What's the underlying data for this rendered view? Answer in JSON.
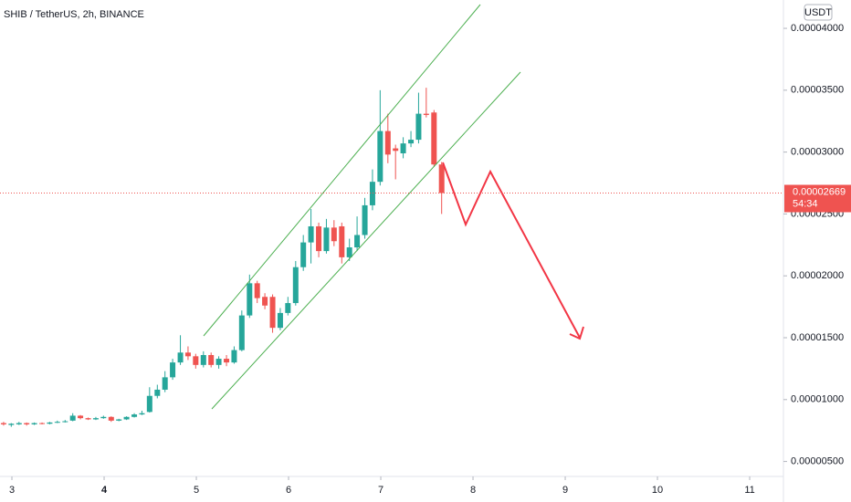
{
  "chart_data": {
    "type": "candlestick",
    "title": "SHIB / TetherUS, 2h, BINANCE",
    "currency": "USDT",
    "up_color": "#26a69a",
    "down_color": "#ef5350",
    "x": [
      2.91,
      2.993,
      3.077,
      3.16,
      3.243,
      3.327,
      3.41,
      3.493,
      3.577,
      3.66,
      3.743,
      3.827,
      3.91,
      3.993,
      4.077,
      4.16,
      4.243,
      4.327,
      4.41,
      4.493,
      4.577,
      4.66,
      4.743,
      4.827,
      4.91,
      4.993,
      5.077,
      5.16,
      5.243,
      5.327,
      5.41,
      5.493,
      5.577,
      5.66,
      5.743,
      5.827,
      5.91,
      5.993,
      6.077,
      6.16,
      6.243,
      6.327,
      6.41,
      6.493,
      6.577,
      6.66,
      6.743,
      6.827,
      6.91,
      6.993,
      7.077,
      7.16,
      7.243,
      7.327,
      7.41,
      7.493,
      7.577,
      7.66
    ],
    "open": [
      8.1e-06,
      7.95e-06,
      8e-06,
      8.1e-06,
      8e-06,
      8.1e-06,
      8.05e-06,
      8.15e-06,
      8.2e-06,
      8.3e-06,
      8.7e-06,
      8.5e-06,
      8.4e-06,
      8.5e-06,
      8.6e-06,
      8.3e-06,
      8.4e-06,
      8.6e-06,
      8.8e-06,
      9e-06,
      1.03e-05,
      1.08e-05,
      1.18e-05,
      1.3e-05,
      1.38e-05,
      1.35e-05,
      1.28e-05,
      1.36e-05,
      1.28e-05,
      1.33e-05,
      1.3e-05,
      1.4e-05,
      1.68e-05,
      1.94e-05,
      1.83e-05,
      1.83e-05,
      1.58e-05,
      1.7e-05,
      1.78e-05,
      2.07e-05,
      2.27e-05,
      2.4e-05,
      2.2e-05,
      2.39e-05,
      2.4e-05,
      2.15e-05,
      2.23e-05,
      2.33e-05,
      2.57e-05,
      2.76e-05,
      3.17e-05,
      3.03e-05,
      2.99e-05,
      3.07e-05,
      3.1e-05,
      3.31e-05,
      3.32e-05,
      2.9e-05
    ],
    "high": [
      8.2e-06,
      8.1e-06,
      8.2e-06,
      8.15e-06,
      8.15e-06,
      8.15e-06,
      8.2e-06,
      8.3e-06,
      8.35e-06,
      8.9e-06,
      8.75e-06,
      8.55e-06,
      8.6e-06,
      8.7e-06,
      8.65e-06,
      8.45e-06,
      8.65e-06,
      8.9e-06,
      9.1e-06,
      1.1e-05,
      1.12e-05,
      1.23e-05,
      1.33e-05,
      1.52e-05,
      1.43e-05,
      1.37e-05,
      1.39e-05,
      1.38e-05,
      1.35e-05,
      1.36e-05,
      1.43e-05,
      1.72e-05,
      2.01e-05,
      1.96e-05,
      1.86e-05,
      1.85e-05,
      1.74e-05,
      1.83e-05,
      2.12e-05,
      2.33e-05,
      2.54e-05,
      2.43e-05,
      2.46e-05,
      2.45e-05,
      2.43e-05,
      2.3e-05,
      2.48e-05,
      2.63e-05,
      2.86e-05,
      3.5e-05,
      3.31e-05,
      3.06e-05,
      3.12e-05,
      3.17e-05,
      3.48e-05,
      3.52e-05,
      3.34e-05,
      2.92e-05
    ],
    "low": [
      7.9e-06,
      7.8e-06,
      7.95e-06,
      7.9e-06,
      7.95e-06,
      8e-06,
      8e-06,
      8.1e-06,
      8.15e-06,
      8.25e-06,
      8.4e-06,
      8.35e-06,
      8.35e-06,
      8.45e-06,
      8.2e-06,
      8.25e-06,
      8.35e-06,
      8.55e-06,
      8.75e-06,
      8.95e-06,
      1.01e-05,
      1.06e-05,
      1.16e-05,
      1.28e-05,
      1.32e-05,
      1.25e-05,
      1.26e-05,
      1.26e-05,
      1.25e-05,
      1.27e-05,
      1.29e-05,
      1.39e-05,
      1.66e-05,
      1.78e-05,
      1.73e-05,
      1.54e-05,
      1.56e-05,
      1.68e-05,
      1.76e-05,
      2.04e-05,
      2.1e-05,
      2.15e-05,
      2.18e-05,
      2.24e-05,
      2.1e-05,
      2.12e-05,
      2.2e-05,
      2.3e-05,
      2.53e-05,
      2.73e-05,
      2.91e-05,
      2.78e-05,
      2.95e-05,
      3.04e-05,
      3.07e-05,
      3.28e-05,
      2.88e-05,
      2.5e-05
    ],
    "close": [
      8e-06,
      8.05e-06,
      8.1e-06,
      8e-06,
      8.1e-06,
      8.05e-06,
      8.15e-06,
      8.2e-06,
      8.25e-06,
      8.7e-06,
      8.5e-06,
      8.4e-06,
      8.5e-06,
      8.6e-06,
      8.3e-06,
      8.4e-06,
      8.6e-06,
      8.8e-06,
      8.9e-06,
      1.03e-05,
      1.08e-05,
      1.18e-05,
      1.3e-05,
      1.38e-05,
      1.35e-05,
      1.28e-05,
      1.36e-05,
      1.28e-05,
      1.33e-05,
      1.3e-05,
      1.4e-05,
      1.68e-05,
      1.94e-05,
      1.82e-05,
      1.76e-05,
      1.58e-05,
      1.7e-05,
      1.78e-05,
      2.07e-05,
      2.27e-05,
      2.4e-05,
      2.2e-05,
      2.39e-05,
      2.28e-05,
      2.15e-05,
      2.23e-05,
      2.33e-05,
      2.57e-05,
      2.76e-05,
      3.17e-05,
      2.98e-05,
      3.01e-05,
      3.07e-05,
      3.1e-05,
      3.31e-05,
      3.3e-05,
      2.9e-05,
      2.669e-05
    ],
    "xlim": [
      2.871,
      11.366
    ],
    "xticks": [
      3,
      4,
      5,
      6,
      7,
      8,
      9,
      10,
      11
    ],
    "ylim": [
      3.79e-06,
      4.229e-05
    ],
    "yticks": [
      {
        "value": 4e-05,
        "label": "0.00004000"
      },
      {
        "value": 3.5e-05,
        "label": "0.00003500"
      },
      {
        "value": 3e-05,
        "label": "0.00003000"
      },
      {
        "value": 2.5e-05,
        "label": "0.00002500"
      },
      {
        "value": 2e-05,
        "label": "0.00002000"
      },
      {
        "value": 1.5e-05,
        "label": "0.00001500"
      },
      {
        "value": 1e-05,
        "label": "0.00001000"
      },
      {
        "value": 5e-06,
        "label": "0.00000500"
      }
    ],
    "last_price": {
      "value": 2.669e-05,
      "label": "0.00002669"
    },
    "countdown": "54:34"
  }
}
